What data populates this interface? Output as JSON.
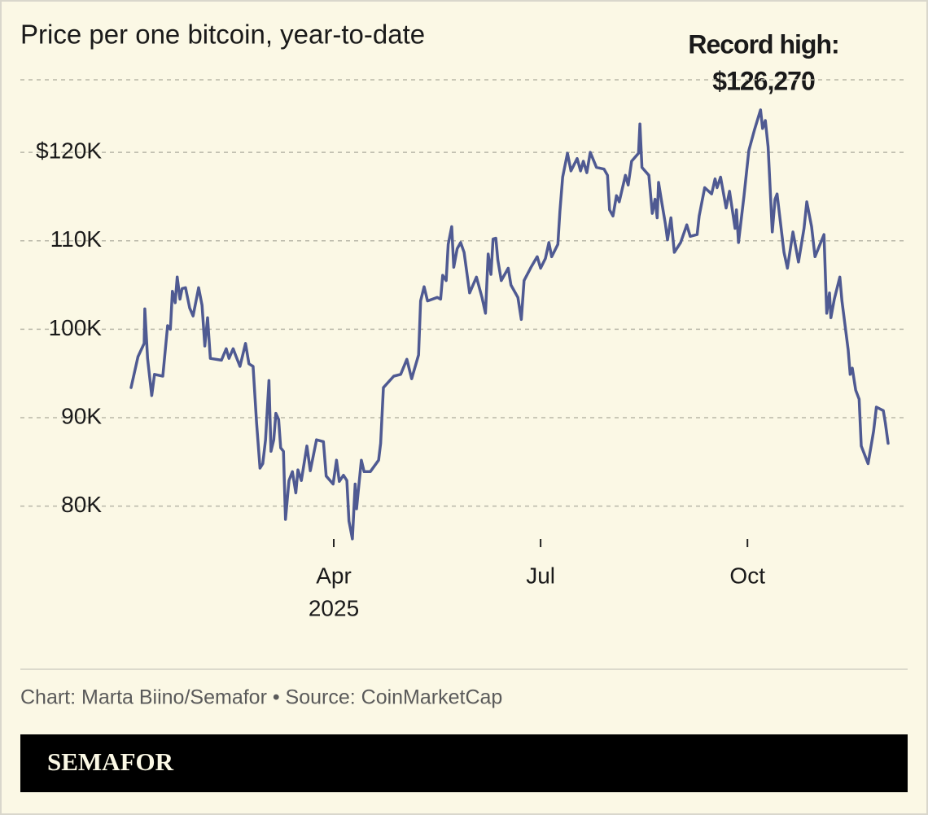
{
  "chart_data": {
    "type": "line",
    "title": "Price per one bitcoin, year-to-date",
    "annotations": [
      "Record high:",
      "$126,270"
    ],
    "source": "Chart: Marta Biino/Semafor • Source: CoinMarketCap",
    "brand": "SEMAFOR",
    "color": "#4f5a92",
    "grid": true,
    "xlim": [
      1.06,
      12.04
    ],
    "ylim": [
      75,
      128.2
    ],
    "xticks": [
      {
        "value": 4,
        "label": "Apr"
      },
      {
        "value": 7,
        "label": "Jul"
      },
      {
        "value": 10,
        "label": "Oct"
      }
    ],
    "x_year_label": "2025",
    "yticks": [
      {
        "value": 80,
        "label": "80K"
      },
      {
        "value": 90,
        "label": "90K"
      },
      {
        "value": 100,
        "label": "100K"
      },
      {
        "value": 110,
        "label": "110K"
      },
      {
        "value": 120,
        "label": "$120K"
      }
    ],
    "x": [
      1.06,
      1.16,
      1.25,
      1.26,
      1.3,
      1.36,
      1.4,
      1.52,
      1.59,
      1.63,
      1.66,
      1.7,
      1.73,
      1.77,
      1.8,
      1.85,
      1.91,
      1.96,
      2.04,
      2.09,
      2.13,
      2.17,
      2.21,
      2.37,
      2.44,
      2.48,
      2.54,
      2.58,
      2.64,
      2.72,
      2.77,
      2.83,
      2.88,
      2.93,
      2.97,
      3.01,
      3.06,
      3.09,
      3.13,
      3.16,
      3.2,
      3.23,
      3.27,
      3.3,
      3.35,
      3.4,
      3.45,
      3.48,
      3.53,
      3.61,
      3.66,
      3.75,
      3.85,
      3.89,
      3.99,
      4.04,
      4.08,
      4.14,
      4.19,
      4.22,
      4.27,
      4.31,
      4.33,
      4.4,
      4.44,
      4.53,
      4.65,
      4.68,
      4.72,
      4.87,
      4.97,
      5.06,
      5.13,
      5.23,
      5.26,
      5.31,
      5.36,
      5.5,
      5.55,
      5.58,
      5.63,
      5.66,
      5.71,
      5.74,
      5.79,
      5.84,
      5.89,
      5.97,
      6.07,
      6.15,
      6.2,
      6.24,
      6.28,
      6.31,
      6.35,
      6.38,
      6.43,
      6.53,
      6.57,
      6.67,
      6.72,
      6.76,
      6.86,
      6.95,
      7.0,
      7.07,
      7.12,
      7.16,
      7.25,
      7.28,
      7.32,
      7.39,
      7.44,
      7.53,
      7.58,
      7.62,
      7.67,
      7.72,
      7.81,
      7.92,
      7.97,
      8.0,
      8.05,
      8.1,
      8.14,
      8.23,
      8.27,
      8.32,
      8.42,
      8.44,
      8.47,
      8.57,
      8.62,
      8.66,
      8.69,
      8.71,
      8.76,
      8.81,
      8.84,
      8.89,
      8.94,
      9.03,
      9.12,
      9.17,
      9.27,
      9.3,
      9.38,
      9.48,
      9.53,
      9.56,
      9.61,
      9.69,
      9.74,
      9.82,
      9.84,
      9.87,
      9.95,
      10.02,
      10.1,
      10.19,
      10.22,
      10.26,
      10.3,
      10.36,
      10.4,
      10.43,
      10.53,
      10.58,
      10.66,
      10.74,
      10.82,
      10.86,
      10.93,
      10.98,
      11.11,
      11.15,
      11.19,
      11.21,
      11.26,
      11.34,
      11.37,
      11.46,
      11.49,
      11.52,
      11.57,
      11.62,
      11.65,
      11.75,
      11.83,
      11.87,
      11.97,
      12.0,
      12.04
    ],
    "values": [
      93.4,
      96.9,
      98.4,
      102.3,
      96.7,
      92.5,
      94.9,
      94.7,
      100.4,
      100.0,
      104.3,
      103.0,
      105.9,
      103.4,
      104.6,
      104.7,
      102.4,
      101.5,
      104.7,
      102.7,
      98.1,
      101.3,
      96.7,
      96.5,
      97.8,
      96.7,
      97.8,
      97.0,
      95.8,
      98.4,
      96.1,
      95.8,
      89.4,
      84.3,
      84.8,
      87.5,
      94.2,
      86.2,
      87.5,
      90.5,
      89.8,
      86.6,
      86.2,
      78.5,
      82.9,
      83.9,
      81.5,
      84.1,
      82.9,
      86.8,
      84.0,
      87.5,
      87.3,
      83.4,
      82.5,
      85.2,
      82.8,
      83.5,
      82.9,
      78.3,
      76.3,
      82.5,
      79.7,
      85.2,
      83.9,
      83.9,
      85.2,
      87.1,
      93.4,
      94.7,
      94.9,
      96.6,
      94.4,
      97.1,
      103.2,
      104.8,
      103.2,
      103.6,
      103.4,
      106.1,
      105.5,
      109.6,
      111.6,
      107.0,
      109.1,
      109.8,
      108.7,
      104.1,
      105.9,
      103.6,
      101.8,
      108.5,
      106.2,
      110.2,
      110.3,
      107.8,
      105.5,
      106.9,
      105.0,
      103.6,
      101.1,
      105.5,
      107.0,
      108.2,
      106.9,
      108.0,
      109.8,
      108.2,
      109.6,
      113.3,
      117.2,
      119.9,
      117.9,
      119.3,
      117.9,
      119.0,
      117.7,
      120.0,
      118.3,
      118.1,
      117.4,
      113.5,
      112.8,
      115.1,
      114.4,
      117.4,
      116.3,
      119.0,
      119.9,
      123.2,
      118.3,
      117.4,
      113.1,
      114.7,
      112.6,
      116.6,
      114.2,
      111.9,
      110.1,
      112.6,
      108.7,
      109.8,
      111.8,
      110.5,
      110.7,
      112.8,
      116.0,
      115.3,
      117.0,
      116.0,
      117.2,
      113.7,
      115.6,
      111.4,
      113.5,
      109.8,
      115.1,
      120.2,
      122.5,
      124.8,
      122.7,
      123.6,
      120.6,
      111.0,
      114.7,
      115.3,
      108.7,
      106.9,
      111.0,
      107.6,
      111.4,
      114.4,
      111.6,
      108.2,
      110.7,
      101.8,
      104.1,
      101.3,
      103.4,
      105.9,
      103.2,
      97.7,
      94.9,
      95.6,
      93.1,
      92.1,
      86.8,
      84.8,
      88.5,
      91.2,
      90.8,
      89.4,
      87.1
    ]
  }
}
